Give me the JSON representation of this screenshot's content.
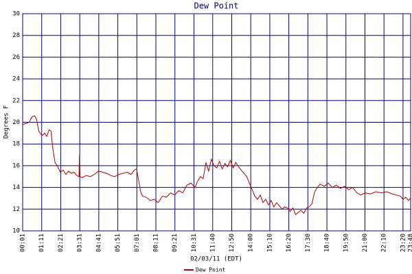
{
  "chart_data": {
    "type": "line",
    "title": "Dew Point",
    "y_label": "Degrees F",
    "x_label": "02/03/11 (EDT)",
    "xlim": [
      1,
      1428
    ],
    "ylim": [
      10,
      30
    ],
    "yticks": [
      10,
      12,
      14,
      16,
      18,
      20,
      22,
      24,
      26,
      28,
      30
    ],
    "xticks": [
      {
        "value": 1,
        "label": "00:01"
      },
      {
        "value": 71,
        "label": "01:11"
      },
      {
        "value": 141,
        "label": "02:21"
      },
      {
        "value": 211,
        "label": "03:31"
      },
      {
        "value": 281,
        "label": "04:41"
      },
      {
        "value": 351,
        "label": "05:51"
      },
      {
        "value": 421,
        "label": "07:01"
      },
      {
        "value": 491,
        "label": "08:11"
      },
      {
        "value": 561,
        "label": "09:21"
      },
      {
        "value": 631,
        "label": "10:31"
      },
      {
        "value": 700,
        "label": "11:40"
      },
      {
        "value": 770,
        "label": "12:50"
      },
      {
        "value": 840,
        "label": "14:00"
      },
      {
        "value": 910,
        "label": "15:10"
      },
      {
        "value": 980,
        "label": "16:20"
      },
      {
        "value": 1050,
        "label": "17:30"
      },
      {
        "value": 1120,
        "label": "18:40"
      },
      {
        "value": 1190,
        "label": "19:50"
      },
      {
        "value": 1260,
        "label": "21:00"
      },
      {
        "value": 1330,
        "label": "22:10"
      },
      {
        "value": 1400,
        "label": "23:20"
      },
      {
        "value": 1428,
        "label": "23:48"
      }
    ],
    "grid": true,
    "series": [
      {
        "name": "Dew Point",
        "color": "#b00000",
        "x": [
          1,
          15,
          25,
          35,
          45,
          52,
          60,
          68,
          75,
          82,
          90,
          98,
          105,
          112,
          120,
          130,
          140,
          150,
          160,
          170,
          180,
          190,
          200,
          208,
          210,
          212,
          220,
          235,
          250,
          265,
          280,
          295,
          310,
          325,
          340,
          355,
          370,
          385,
          400,
          412,
          420,
          428,
          435,
          442,
          455,
          470,
          485,
          500,
          515,
          530,
          545,
          560,
          575,
          590,
          605,
          620,
          635,
          645,
          655,
          665,
          675,
          685,
          695,
          705,
          715,
          725,
          735,
          745,
          755,
          765,
          775,
          785,
          795,
          805,
          815,
          825,
          835,
          845,
          855,
          865,
          875,
          885,
          895,
          905,
          915,
          925,
          935,
          945,
          955,
          965,
          975,
          985,
          995,
          1005,
          1015,
          1025,
          1035,
          1045,
          1055,
          1065,
          1075,
          1085,
          1095,
          1110,
          1125,
          1140,
          1155,
          1170,
          1185,
          1200,
          1215,
          1230,
          1245,
          1260,
          1280,
          1300,
          1320,
          1340,
          1360,
          1375,
          1390,
          1400,
          1410,
          1420,
          1428
        ],
        "values": [
          19.8,
          19.9,
          20.0,
          20.5,
          20.6,
          20.3,
          19.2,
          18.9,
          18.8,
          19.0,
          18.7,
          19.3,
          19.2,
          17.6,
          16.3,
          15.9,
          15.4,
          15.6,
          15.2,
          15.5,
          15.3,
          15.4,
          15.1,
          15.0,
          17.0,
          15.0,
          14.9,
          15.1,
          15.0,
          15.2,
          15.5,
          15.4,
          15.3,
          15.1,
          15.0,
          15.2,
          15.3,
          15.4,
          15.2,
          15.6,
          15.7,
          14.6,
          13.6,
          13.2,
          13.1,
          12.8,
          12.9,
          12.6,
          13.2,
          13.1,
          13.5,
          13.3,
          13.7,
          13.5,
          14.2,
          14.4,
          14.0,
          14.6,
          15.0,
          14.8,
          16.3,
          15.5,
          16.6,
          16.0,
          15.8,
          16.4,
          15.7,
          16.2,
          15.9,
          16.5,
          15.8,
          16.3,
          15.9,
          15.6,
          15.3,
          15.0,
          14.4,
          13.8,
          13.2,
          12.9,
          13.3,
          12.6,
          12.9,
          12.4,
          12.8,
          12.2,
          12.6,
          12.3,
          12.0,
          12.2,
          12.1,
          11.8,
          12.1,
          11.5,
          11.7,
          11.9,
          11.6,
          12.1,
          12.2,
          12.5,
          13.6,
          14.0,
          14.3,
          14.1,
          14.4,
          14.0,
          14.2,
          13.9,
          14.1,
          13.8,
          14.0,
          13.5,
          13.3,
          13.5,
          13.4,
          13.6,
          13.5,
          13.6,
          13.4,
          13.3,
          13.2,
          12.9,
          13.1,
          12.8,
          13.0
        ]
      }
    ]
  }
}
